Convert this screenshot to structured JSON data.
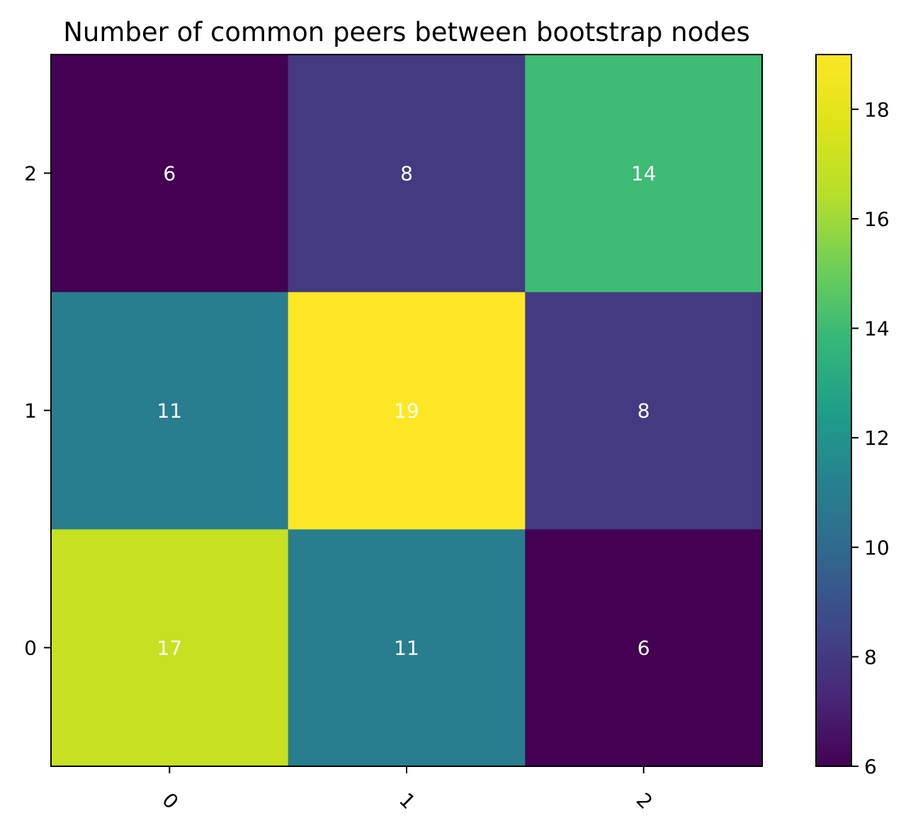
{
  "chart_data": {
    "type": "heatmap",
    "title": "Number of common peers between bootstrap nodes",
    "xlabel": "",
    "ylabel": "",
    "x_categories": [
      "0",
      "1",
      "2"
    ],
    "y_categories": [
      "0",
      "1",
      "2"
    ],
    "x_tick_rotation_deg": 45,
    "values": [
      [
        17,
        11,
        6
      ],
      [
        11,
        19,
        8
      ],
      [
        6,
        8,
        14
      ]
    ],
    "value_labels": [
      [
        "17",
        "11",
        "6"
      ],
      [
        "11",
        "19",
        "8"
      ],
      [
        "6",
        "8",
        "14"
      ]
    ],
    "colormap": "viridis",
    "color_range": [
      6,
      19
    ],
    "colorbar_ticks": [
      6,
      8,
      10,
      12,
      14,
      16,
      18
    ],
    "colorbar_tick_labels": [
      "6",
      "8",
      "10",
      "12",
      "14",
      "16",
      "18"
    ],
    "annotation_color": "#ffffff",
    "grid": false,
    "colorbar_position": "right"
  }
}
